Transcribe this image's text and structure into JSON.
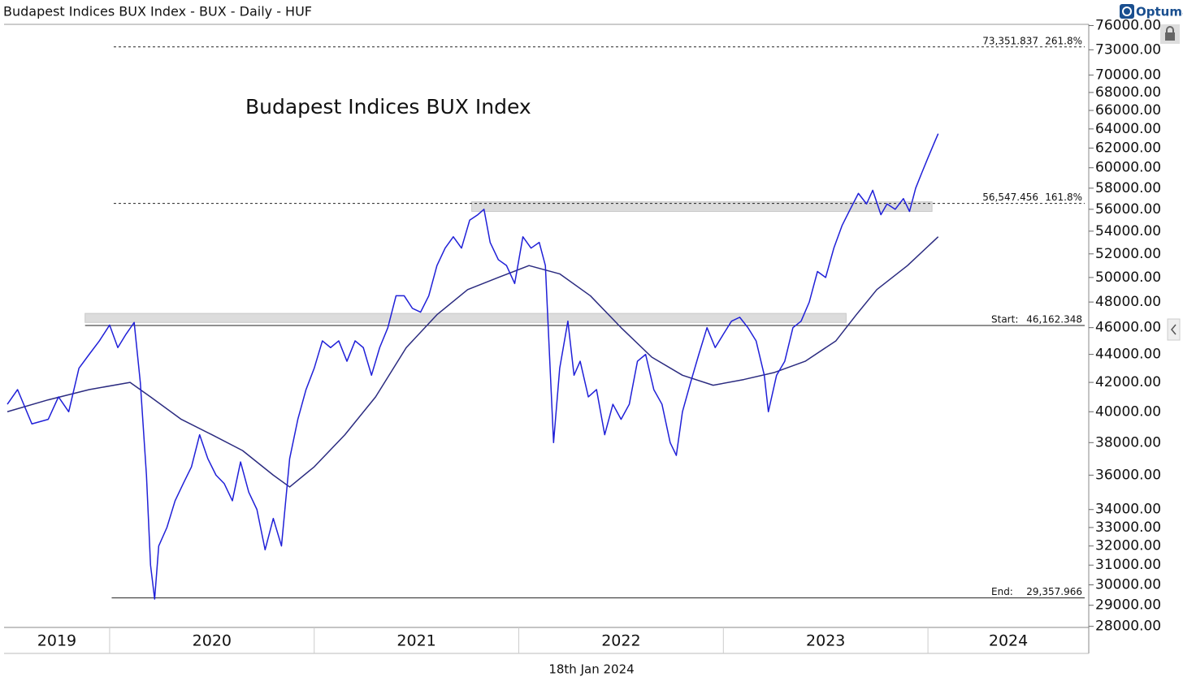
{
  "chart_data": {
    "type": "line",
    "title": "Budapest Indices BUX Index - BUX - Daily - HUF",
    "brand": "Optuma",
    "inner_label": "Budapest Indices BUX Index",
    "footer": "18th Jan 2024",
    "log_scale": true,
    "xlim": [
      2019.484,
      2024.786
    ],
    "xticks": [
      {
        "value": 2019,
        "label": "2019"
      },
      {
        "value": 2020,
        "label": "2020"
      },
      {
        "value": 2021,
        "label": "2021"
      },
      {
        "value": 2022,
        "label": "2022"
      },
      {
        "value": 2023,
        "label": "2023"
      },
      {
        "value": 2024,
        "label": "2024"
      }
    ],
    "ylim": [
      27950,
      76150
    ],
    "yticks": [
      {
        "value": 28000,
        "label": "28000.00"
      },
      {
        "value": 29000,
        "label": "29000.00"
      },
      {
        "value": 30000,
        "label": "30000.00"
      },
      {
        "value": 31000,
        "label": "31000.00"
      },
      {
        "value": 32000,
        "label": "32000.00"
      },
      {
        "value": 33000,
        "label": "33000.00"
      },
      {
        "value": 34000,
        "label": "34000.00"
      },
      {
        "value": 36000,
        "label": "36000.00"
      },
      {
        "value": 38000,
        "label": "38000.00"
      },
      {
        "value": 40000,
        "label": "40000.00"
      },
      {
        "value": 42000,
        "label": "42000.00"
      },
      {
        "value": 44000,
        "label": "44000.00"
      },
      {
        "value": 46000,
        "label": "46000.00"
      },
      {
        "value": 48000,
        "label": "48000.00"
      },
      {
        "value": 50000,
        "label": "50000.00"
      },
      {
        "value": 52000,
        "label": "52000.00"
      },
      {
        "value": 54000,
        "label": "54000.00"
      },
      {
        "value": 56000,
        "label": "56000.00"
      },
      {
        "value": 58000,
        "label": "58000.00"
      },
      {
        "value": 60000,
        "label": "60000.00"
      },
      {
        "value": 62000,
        "label": "62000.00"
      },
      {
        "value": 64000,
        "label": "64000.00"
      },
      {
        "value": 66000,
        "label": "66000.00"
      },
      {
        "value": 68000,
        "label": "68000.00"
      },
      {
        "value": 70000,
        "label": "70000.00"
      },
      {
        "value": 73000,
        "label": "73000.00"
      },
      {
        "value": 76000,
        "label": "76000.00"
      }
    ],
    "series": [
      {
        "color": "#2020d8",
        "x": [
          2019.5,
          2019.55,
          2019.62,
          2019.7,
          2019.75,
          2019.8,
          2019.85,
          2019.9,
          2019.95,
          2020.0,
          2020.04,
          2020.08,
          2020.12,
          2020.15,
          2020.18,
          2020.2,
          2020.22,
          2020.24,
          2020.28,
          2020.32,
          2020.36,
          2020.4,
          2020.44,
          2020.48,
          2020.52,
          2020.56,
          2020.6,
          2020.64,
          2020.68,
          2020.72,
          2020.76,
          2020.8,
          2020.84,
          2020.88,
          2020.92,
          2020.96,
          2021.0,
          2021.04,
          2021.08,
          2021.12,
          2021.16,
          2021.2,
          2021.24,
          2021.28,
          2021.32,
          2021.36,
          2021.4,
          2021.44,
          2021.48,
          2021.52,
          2021.56,
          2021.6,
          2021.64,
          2021.68,
          2021.72,
          2021.76,
          2021.8,
          2021.83,
          2021.86,
          2021.9,
          2021.94,
          2021.98,
          2022.02,
          2022.06,
          2022.1,
          2022.13,
          2022.15,
          2022.17,
          2022.2,
          2022.24,
          2022.27,
          2022.3,
          2022.34,
          2022.38,
          2022.42,
          2022.46,
          2022.5,
          2022.54,
          2022.58,
          2022.62,
          2022.66,
          2022.7,
          2022.74,
          2022.77,
          2022.8,
          2022.84,
          2022.88,
          2022.92,
          2022.96,
          2023.0,
          2023.04,
          2023.08,
          2023.12,
          2023.16,
          2023.2,
          2023.22,
          2023.26,
          2023.3,
          2023.34,
          2023.38,
          2023.42,
          2023.46,
          2023.5,
          2023.54,
          2023.58,
          2023.62,
          2023.66,
          2023.7,
          2023.73,
          2023.77,
          2023.8,
          2023.84,
          2023.88,
          2023.91,
          2023.94,
          2023.97,
          2024.0,
          2024.03,
          2024.05
        ],
        "values": [
          40500,
          41500,
          39200,
          39500,
          41000,
          40000,
          43000,
          44000,
          45000,
          46200,
          44500,
          45500,
          46400,
          42000,
          36000,
          31000,
          29300,
          32000,
          33000,
          34500,
          35500,
          36500,
          38500,
          37000,
          36000,
          35500,
          34500,
          36800,
          35000,
          34000,
          31800,
          33500,
          32000,
          37000,
          39500,
          41500,
          43000,
          45000,
          44500,
          45000,
          43500,
          45000,
          44500,
          42500,
          44500,
          46000,
          48500,
          48500,
          47500,
          47200,
          48500,
          51000,
          52500,
          53500,
          52500,
          55000,
          55500,
          56000,
          53000,
          51500,
          51000,
          49500,
          53500,
          52500,
          53000,
          51000,
          44000,
          38000,
          43000,
          46500,
          42500,
          43500,
          41000,
          41500,
          38500,
          40500,
          39500,
          40500,
          43500,
          44000,
          41500,
          40500,
          38000,
          37200,
          40000,
          42000,
          44000,
          46000,
          44500,
          45500,
          46500,
          46800,
          46000,
          45000,
          42500,
          40000,
          42500,
          43500,
          46000,
          46500,
          48000,
          50500,
          50000,
          52500,
          54500,
          56000,
          57500,
          56500,
          57800,
          55500,
          56500,
          56000,
          57000,
          55800,
          58000,
          59500,
          61000,
          62500,
          63500
        ]
      },
      {
        "color": "#2b2b80",
        "x": [
          2019.5,
          2019.7,
          2019.9,
          2020.1,
          2020.2,
          2020.35,
          2020.5,
          2020.65,
          2020.8,
          2020.88,
          2021.0,
          2021.15,
          2021.3,
          2021.45,
          2021.6,
          2021.75,
          2021.9,
          2022.05,
          2022.2,
          2022.35,
          2022.5,
          2022.65,
          2022.8,
          2022.95,
          2023.1,
          2023.25,
          2023.4,
          2023.55,
          2023.65,
          2023.75,
          2023.9,
          2024.05
        ],
        "values": [
          40000,
          40800,
          41500,
          42000,
          41000,
          39500,
          38500,
          37500,
          36000,
          35300,
          36500,
          38500,
          41000,
          44500,
          47000,
          49000,
          50000,
          51000,
          50300,
          48500,
          46000,
          43800,
          42500,
          41800,
          42200,
          42700,
          43500,
          45000,
          47000,
          49000,
          51000,
          53500
        ]
      }
    ],
    "levels": [
      {
        "value": 73351.837,
        "label": "73,351.837",
        "pct": "261.8%",
        "style": "dotted",
        "start": 2020.02
      },
      {
        "value": 56547.456,
        "label": "56,547.456",
        "pct": "161.8%",
        "style": "dotted",
        "start": 2020.02
      },
      {
        "value": 46162.348,
        "prefix": "Start:",
        "label": "46,162.348",
        "style": "solid",
        "start": 2019.88
      },
      {
        "value": 29357.966,
        "prefix": "End:",
        "label": "29,357.966",
        "style": "solid",
        "start": 2020.01
      }
    ],
    "bands": [
      {
        "from": 55800,
        "to": 56700,
        "start": 2021.77,
        "end": 2024.02
      },
      {
        "from": 46400,
        "to": 47100,
        "start": 2019.88,
        "end": 2023.6
      }
    ]
  }
}
